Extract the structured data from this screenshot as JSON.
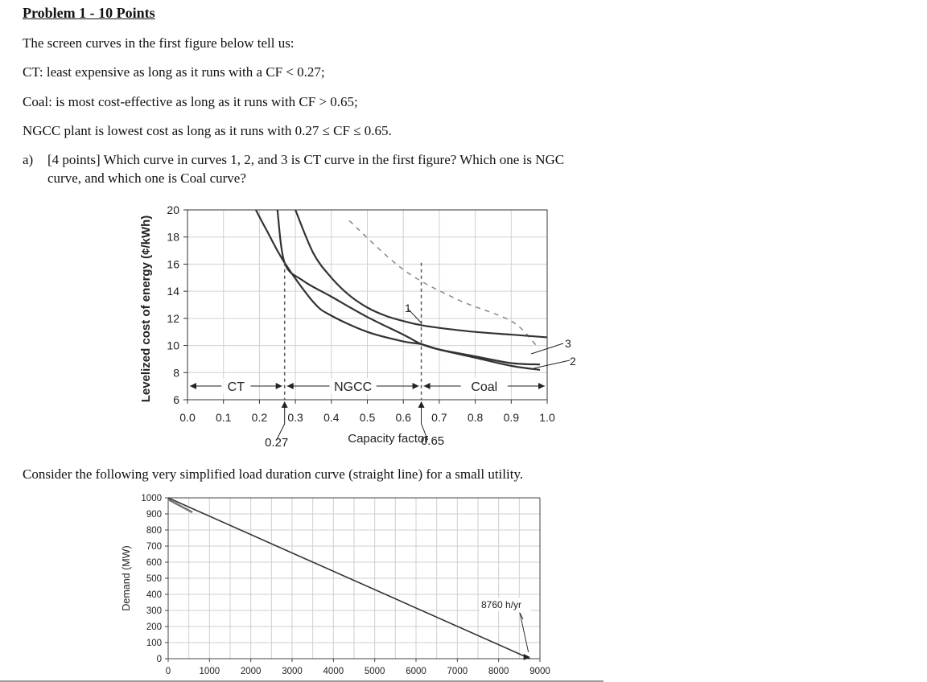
{
  "problem": {
    "heading": "Problem 1 - 10 Points",
    "intro": "The screen curves in the first figure below tell us:",
    "lines": [
      "CT: least expensive as long as it runs with a CF < 0.27;",
      "Coal: is most cost-effective as long as it runs with CF > 0.65;",
      "NGCC plant is lowest cost as long as it runs with 0.27 ≤ CF ≤ 0.65."
    ],
    "question_a_marker": "a)",
    "question_a_line1": "[4 points] Which curve in curves 1, 2, and 3 is CT curve in the first figure? Which one is NGC",
    "question_a_line2": "curve, and which one is Coal curve?",
    "consider_text": "Consider the following very simplified load duration curve (straight line) for a small utility."
  },
  "chart_data": [
    {
      "type": "line",
      "title": "",
      "xlabel": "Capacity factor",
      "ylabel": "Levelized cost of energy (¢/kWh)",
      "xlim": [
        0,
        1.0
      ],
      "ylim": [
        6,
        20
      ],
      "x_ticks": [
        "0.0",
        "0.1",
        "0.2",
        "0.3",
        "0.4",
        "0.5",
        "0.6",
        "0.7",
        "0.8",
        "0.9",
        "1.0"
      ],
      "y_ticks": [
        "6",
        "8",
        "10",
        "12",
        "14",
        "16",
        "18",
        "20"
      ],
      "grid": true,
      "series": [
        {
          "name": "1",
          "style": "dashed",
          "x": [
            0.45,
            0.6,
            0.75,
            0.9,
            0.97
          ],
          "y": [
            19.2,
            15.6,
            13.4,
            11.8,
            10.0
          ]
        },
        {
          "name": "3",
          "style": "solid",
          "x": [
            0.3,
            0.35,
            0.4,
            0.45,
            0.5,
            0.55,
            0.6,
            0.65,
            0.7,
            0.8,
            0.9,
            1.0
          ],
          "y": [
            20.0,
            16.8,
            15.0,
            13.7,
            12.8,
            12.2,
            11.8,
            11.5,
            11.3,
            11.0,
            10.8,
            10.6
          ]
        },
        {
          "name": "2",
          "style": "solid",
          "x": [
            0.19,
            0.22,
            0.27,
            0.35,
            0.4,
            0.5,
            0.6,
            0.65,
            0.7,
            0.8,
            0.9,
            0.98
          ],
          "y": [
            20.0,
            18.5,
            16.1,
            13.2,
            12.2,
            11.0,
            10.3,
            10.1,
            9.7,
            9.1,
            8.5,
            8.2
          ]
        },
        {
          "name": "",
          "style": "solid",
          "x": [
            0.25,
            0.27,
            0.32,
            0.4,
            0.5,
            0.6,
            0.65,
            0.7,
            0.8,
            0.9,
            0.98
          ],
          "y": [
            20.0,
            16.1,
            14.8,
            13.6,
            12.1,
            10.8,
            10.1,
            9.7,
            9.2,
            8.7,
            8.6
          ]
        }
      ],
      "regions": [
        {
          "label": "CT",
          "from": 0.0,
          "to": 0.27
        },
        {
          "label": "NGCC",
          "from": 0.27,
          "to": 0.65
        },
        {
          "label": "Coal",
          "from": 0.65,
          "to": 1.0
        }
      ],
      "annotations": [
        {
          "text": "0.27",
          "x": 0.27
        },
        {
          "text": "0.65",
          "x": 0.65
        },
        {
          "text": "1",
          "x": 0.6,
          "y": 12.5
        },
        {
          "text": "3",
          "x": 1.0,
          "y": 10.0
        },
        {
          "text": "2",
          "x": 1.0,
          "y": 8.8
        }
      ]
    },
    {
      "type": "line",
      "title": "",
      "xlabel": "",
      "ylabel": "Demand (MW)",
      "xlim": [
        0,
        9000
      ],
      "ylim": [
        0,
        1000
      ],
      "x_ticks": [
        "0",
        "1000",
        "2000",
        "3000",
        "4000",
        "5000",
        "6000",
        "7000",
        "8000",
        "9000"
      ],
      "y_ticks": [
        "0",
        "100",
        "200",
        "300",
        "400",
        "500",
        "600",
        "700",
        "800",
        "900",
        "1000"
      ],
      "grid": true,
      "series": [
        {
          "name": "",
          "x": [
            0,
            8760
          ],
          "y": [
            1000,
            0
          ]
        }
      ],
      "annotations": [
        {
          "text": "8760 h/yr",
          "x": 8760,
          "y": 0
        }
      ]
    }
  ]
}
